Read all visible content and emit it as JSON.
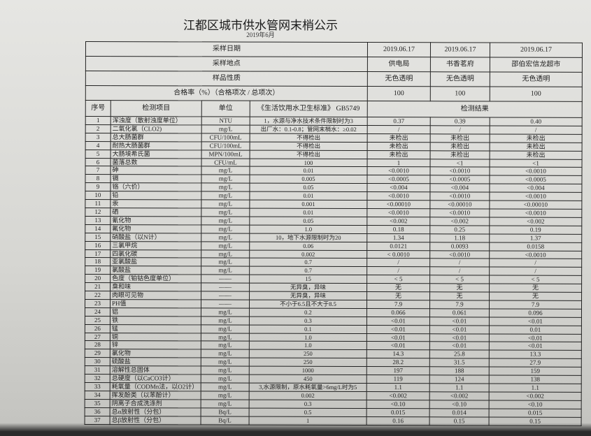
{
  "title": "江都区城市供水管网末梢公示",
  "subtitle": "2019年6月",
  "header_rows": [
    {
      "label": "采样日期",
      "values": [
        "2019.06.17",
        "2019.06.17",
        "2019.06.17"
      ]
    },
    {
      "label": "采样地点",
      "values": [
        "供电局",
        "书香茗府",
        "邵伯宏信龙超市"
      ]
    },
    {
      "label": "样品性质",
      "values": [
        "无色透明",
        "无色透明",
        "无色透明"
      ]
    },
    {
      "label": "合格率（%）（合格项次 / 总项次）",
      "values": [
        "100",
        "100",
        "100"
      ]
    }
  ],
  "columns": {
    "seq": "序号",
    "item": "检测项目",
    "unit": "单位",
    "standard": "《生活饮用水卫生标准》 GB5749",
    "results": "检测结果"
  },
  "rows": [
    {
      "seq": "1",
      "item": "浑浊度（散射浊度单位）",
      "unit": "NTU",
      "standard": "1，水源与净水技术条件限制时为3",
      "r": [
        "0.37",
        "0.39",
        "0.40"
      ]
    },
    {
      "seq": "2",
      "item": "二氧化氯（CLO2)",
      "unit": "mg/L",
      "standard": "出厂水：0.1-0.8；管网末梢水：≥0.02",
      "r": [
        "/",
        "/",
        "/"
      ]
    },
    {
      "seq": "3",
      "item": "总大肠菌群",
      "unit": "CFU/100mL",
      "standard": "不得检出",
      "r": [
        "未检出",
        "未检出",
        "未检出"
      ]
    },
    {
      "seq": "4",
      "item": "耐热大肠菌群",
      "unit": "CFU/100mL",
      "standard": "不得检出",
      "r": [
        "未检出",
        "未检出",
        "未检出"
      ]
    },
    {
      "seq": "5",
      "item": "大肠埃希氏菌",
      "unit": "MPN/100mL",
      "standard": "不得检出",
      "r": [
        "未检出",
        "未检出",
        "未检出"
      ]
    },
    {
      "seq": "6",
      "item": "菌落总数",
      "unit": "CFU/mL",
      "standard": "100",
      "r": [
        "1",
        "<1",
        "<1"
      ]
    },
    {
      "seq": "7",
      "item": "砷",
      "unit": "mg/L",
      "standard": "0.01",
      "r": [
        "<0.0010",
        "<0.0010",
        "<0.0010"
      ]
    },
    {
      "seq": "8",
      "item": "镉",
      "unit": "mg/L",
      "standard": "0.005",
      "r": [
        "<0.0005",
        "<0.0005",
        "<0.0005"
      ]
    },
    {
      "seq": "9",
      "item": "铬（六价）",
      "unit": "mg/L",
      "standard": "0.05",
      "r": [
        "<0.004",
        "<0.004",
        "<0.004"
      ]
    },
    {
      "seq": "10",
      "item": "铅",
      "unit": "mg/L",
      "standard": "0.01",
      "r": [
        "<0.0010",
        "<0.0010",
        "<0.0010"
      ]
    },
    {
      "seq": "11",
      "item": "汞",
      "unit": "mg/L",
      "standard": "0.001",
      "r": [
        "<0.00010",
        "<0.00010",
        "<0.00010"
      ]
    },
    {
      "seq": "12",
      "item": "硒",
      "unit": "mg/L",
      "standard": "0.01",
      "r": [
        "<0.0010",
        "<0.0010",
        "<0.0010"
      ]
    },
    {
      "seq": "13",
      "item": "氰化物",
      "unit": "mg/L",
      "standard": "0.05",
      "r": [
        "<0.002",
        "<0.002",
        "<0.002"
      ]
    },
    {
      "seq": "14",
      "item": "氟化物",
      "unit": "mg/L",
      "standard": "1.0",
      "r": [
        "0.18",
        "0.25",
        "0.19"
      ]
    },
    {
      "seq": "15",
      "item": "硝酸盐（以N计）",
      "unit": "mg/L",
      "standard": "10，地下水源限制时为20",
      "r": [
        "1.34",
        "1.18",
        "1.37"
      ]
    },
    {
      "seq": "16",
      "item": "三氯甲烷",
      "unit": "mg/L",
      "standard": "0.06",
      "r": [
        "0.0121",
        "0.0093",
        "0.0158"
      ]
    },
    {
      "seq": "17",
      "item": "四氯化碳",
      "unit": "mg/L",
      "standard": "0.002",
      "r": [
        "< 0.0010",
        "<0.0010",
        "<0.0010"
      ]
    },
    {
      "seq": "18",
      "item": "亚氯酸盐",
      "unit": "mg/L",
      "standard": "0.7",
      "r": [
        "/",
        "/",
        "/"
      ]
    },
    {
      "seq": "19",
      "item": "氯酸盐",
      "unit": "mg/L",
      "standard": "0.7",
      "r": [
        "/",
        "/",
        "/"
      ]
    },
    {
      "seq": "20",
      "item": "色度（铂钴色度单位）",
      "unit": "——",
      "standard": "15",
      "r": [
        "< 5",
        "< 5",
        "< 5"
      ]
    },
    {
      "seq": "21",
      "item": "臭和味",
      "unit": "——",
      "standard": "无异臭，异味",
      "r": [
        "无",
        "无",
        "无"
      ]
    },
    {
      "seq": "22",
      "item": "肉眼可见物",
      "unit": "——",
      "standard": "无异臭，异味",
      "r": [
        "无",
        "无",
        "无"
      ]
    },
    {
      "seq": "23",
      "item": "PH值",
      "unit": "——",
      "standard": "不小于6.5且不大于8.5",
      "r": [
        "7.9",
        "7.9",
        "7.9"
      ]
    },
    {
      "seq": "24",
      "item": "铝",
      "unit": "mg/L",
      "standard": "0.2",
      "r": [
        "0.066",
        "0.061",
        "0.096"
      ]
    },
    {
      "seq": "25",
      "item": "铁",
      "unit": "mg/L",
      "standard": "0.3",
      "r": [
        "<0.01",
        "<0.01",
        "<0.01"
      ]
    },
    {
      "seq": "26",
      "item": "锰",
      "unit": "mg/L",
      "standard": "0.1",
      "r": [
        "<0.01",
        "<0.01",
        "0.01"
      ]
    },
    {
      "seq": "27",
      "item": "铜",
      "unit": "mg/L",
      "standard": "1.0",
      "r": [
        "<0.01",
        "<0.01",
        "<0.01"
      ]
    },
    {
      "seq": "28",
      "item": "锌",
      "unit": "mg/L",
      "standard": "1.0",
      "r": [
        "<0.01",
        "<0.01",
        "<0.01"
      ]
    },
    {
      "seq": "29",
      "item": "氯化物",
      "unit": "mg/L",
      "standard": "250",
      "r": [
        "14.3",
        "25.8",
        "13.3"
      ]
    },
    {
      "seq": "30",
      "item": "硫酸盐",
      "unit": "mg/L",
      "standard": "250",
      "r": [
        "28.2",
        "31.5",
        "27.9"
      ]
    },
    {
      "seq": "31",
      "item": "溶解性总固体",
      "unit": "mg/L",
      "standard": "1000",
      "r": [
        "197",
        "188",
        "159"
      ]
    },
    {
      "seq": "32",
      "item": "总硬度（以CaCO3计）",
      "unit": "mg/L",
      "standard": "450",
      "r": [
        "119",
        "124",
        "138"
      ]
    },
    {
      "seq": "33",
      "item": "耗氧量（CODMn法，以O2计）",
      "unit": "mg/L",
      "standard": "3,水源限制，原水耗氧量>6mg/L时为5",
      "r": [
        "1.1",
        "1.1",
        "1.1"
      ]
    },
    {
      "seq": "34",
      "item": "挥发酚类（以苯酚计）",
      "unit": "mg/L",
      "standard": "0.002",
      "r": [
        "<0.002",
        "<0.002",
        "<0.002"
      ]
    },
    {
      "seq": "35",
      "item": "阴离子合成洗涤剂",
      "unit": "mg/L",
      "standard": "0.3",
      "r": [
        "<0.10",
        "<0.10",
        "<0.10"
      ]
    },
    {
      "seq": "36",
      "item": "总α放射性（分包）",
      "unit": "Bq/L",
      "standard": "0.5",
      "r": [
        "0.015",
        "0.014",
        "0.015"
      ]
    },
    {
      "seq": "37",
      "item": "总β放射性（分包）",
      "unit": "Bq/L",
      "standard": "1",
      "r": [
        "0.16",
        "0.15",
        "0.15"
      ]
    }
  ]
}
